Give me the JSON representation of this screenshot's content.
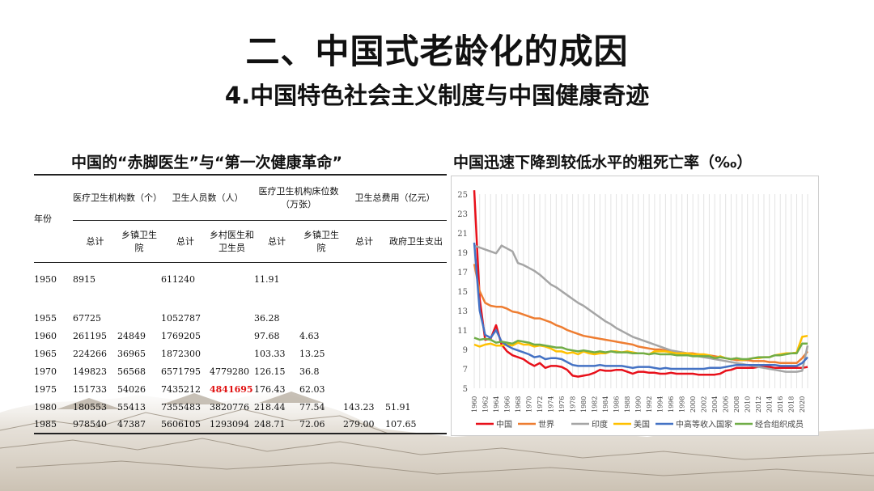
{
  "slide": {
    "title": "二、中国式老龄化的成因",
    "subtitle": "4.中国特色社会主义制度与中国健康奇迹",
    "left_heading": "中国的“赤脚医生”与“第一次健康革命”",
    "right_heading": "中国迅速下降到较低水平的粗死亡率（‰）"
  },
  "table": {
    "year_label": "年份",
    "groups": [
      "医疗卫生机构数（个）",
      "卫生人员数（人）",
      "医疗卫生机构床位数（万张）",
      "卫生总费用（亿元）"
    ],
    "subheaders": [
      "总计",
      "乡镇卫生院",
      "总计",
      "乡村医生和卫生员",
      "总计",
      "乡镇卫生院",
      "总计",
      "政府卫生支出"
    ],
    "rows": [
      [
        "1950",
        "8915",
        "",
        "611240",
        "",
        "11.91",
        "",
        "",
        ""
      ],
      [
        "1955",
        "67725",
        "",
        "1052787",
        "",
        "36.28",
        "",
        "",
        ""
      ],
      [
        "1960",
        "261195",
        "24849",
        "1769205",
        "",
        "97.68",
        "4.63",
        "",
        ""
      ],
      [
        "1965",
        "224266",
        "36965",
        "1872300",
        "",
        "103.33",
        "13.25",
        "",
        ""
      ],
      [
        "1970",
        "149823",
        "56568",
        "6571795",
        "4779280",
        "126.15",
        "36.8",
        "",
        ""
      ],
      [
        "1975",
        "151733",
        "54026",
        "7435212",
        "4841695",
        "176.43",
        "62.03",
        "",
        ""
      ],
      [
        "1980",
        "180553",
        "55413",
        "7355483",
        "3820776",
        "218.44",
        "77.54",
        "143.23",
        "51.91"
      ],
      [
        "1985",
        "978540",
        "47387",
        "5606105",
        "1293094",
        "248.71",
        "72.06",
        "279.00",
        "107.65"
      ]
    ],
    "highlight": {
      "row": 5,
      "col": 4,
      "color": "#e01010"
    }
  },
  "chart_data": {
    "type": "line",
    "title": "中国迅速下降到较低水平的粗死亡率（‰）",
    "x": [
      1960,
      1961,
      1962,
      1963,
      1964,
      1965,
      1966,
      1967,
      1968,
      1969,
      1970,
      1971,
      1972,
      1973,
      1974,
      1975,
      1976,
      1977,
      1978,
      1979,
      1980,
      1981,
      1982,
      1983,
      1984,
      1985,
      1986,
      1987,
      1988,
      1989,
      1990,
      1991,
      1992,
      1993,
      1994,
      1995,
      1996,
      1997,
      1998,
      1999,
      2000,
      2001,
      2002,
      2003,
      2004,
      2005,
      2006,
      2007,
      2008,
      2009,
      2010,
      2011,
      2012,
      2013,
      2014,
      2015,
      2016,
      2017,
      2018,
      2019,
      2020,
      2021
    ],
    "x_tick_labels": [
      "1960",
      "1962",
      "1964",
      "1966",
      "1968",
      "1970",
      "1972",
      "1974",
      "1976",
      "1978",
      "1980",
      "1982",
      "1984",
      "1986",
      "1988",
      "1990",
      "1992",
      "1994",
      "1996",
      "1998",
      "2000",
      "2002",
      "2004",
      "2006",
      "2008",
      "2010",
      "2012",
      "2014",
      "2016",
      "2018",
      "2020"
    ],
    "ylim": [
      5,
      25
    ],
    "y_ticks": [
      5,
      7,
      9,
      11,
      13,
      15,
      17,
      19,
      21,
      23,
      25
    ],
    "grid": "vertical",
    "legend": "bottom",
    "series": [
      {
        "name": "中国",
        "color": "#e8101a",
        "values": [
          25.4,
          14.2,
          10.0,
          10.1,
          11.5,
          9.5,
          8.8,
          8.4,
          8.2,
          8.0,
          7.6,
          7.3,
          7.6,
          7.1,
          7.3,
          7.3,
          7.2,
          6.9,
          6.3,
          6.2,
          6.3,
          6.4,
          6.6,
          6.9,
          6.8,
          6.8,
          6.9,
          6.9,
          6.7,
          6.5,
          6.7,
          6.7,
          6.6,
          6.6,
          6.5,
          6.5,
          6.6,
          6.5,
          6.5,
          6.5,
          6.5,
          6.4,
          6.4,
          6.4,
          6.4,
          6.5,
          6.8,
          6.9,
          7.1,
          7.1,
          7.1,
          7.1,
          7.2,
          7.2,
          7.2,
          7.1,
          7.1,
          7.1,
          7.1,
          7.1,
          7.1,
          7.2
        ]
      },
      {
        "name": "世界",
        "color": "#ee7d31",
        "values": [
          17.8,
          15.0,
          13.8,
          13.5,
          13.4,
          13.4,
          13.2,
          12.9,
          12.8,
          12.6,
          12.4,
          12.2,
          12.2,
          12.0,
          11.8,
          11.5,
          11.3,
          11.0,
          10.8,
          10.6,
          10.4,
          10.3,
          10.2,
          10.1,
          10.0,
          9.9,
          9.8,
          9.7,
          9.6,
          9.5,
          9.3,
          9.2,
          9.1,
          9.0,
          9.0,
          8.9,
          8.8,
          8.7,
          8.7,
          8.6,
          8.6,
          8.5,
          8.4,
          8.4,
          8.3,
          8.2,
          8.1,
          8.0,
          7.9,
          7.9,
          7.9,
          7.8,
          7.8,
          7.8,
          7.7,
          7.7,
          7.6,
          7.6,
          7.6,
          7.6,
          8.1,
          8.8
        ]
      },
      {
        "name": "印度",
        "color": "#a5a5a5",
        "values": [
          19.7,
          19.5,
          19.3,
          19.1,
          18.9,
          19.7,
          19.4,
          19.1,
          17.9,
          17.7,
          17.4,
          17.1,
          16.7,
          16.2,
          15.7,
          15.4,
          15.0,
          14.6,
          14.2,
          13.8,
          13.5,
          13.1,
          12.7,
          12.3,
          11.9,
          11.6,
          11.2,
          10.9,
          10.6,
          10.3,
          10.1,
          9.9,
          9.7,
          9.5,
          9.3,
          9.1,
          8.9,
          8.8,
          8.7,
          8.6,
          8.4,
          8.3,
          8.2,
          8.1,
          8.0,
          7.9,
          7.8,
          7.7,
          7.6,
          7.5,
          7.4,
          7.3,
          7.2,
          7.1,
          7.0,
          6.9,
          6.8,
          6.7,
          6.7,
          6.7,
          6.8,
          9.4
        ]
      },
      {
        "name": "美国",
        "color": "#ffc000",
        "values": [
          9.5,
          9.3,
          9.5,
          9.6,
          9.4,
          9.4,
          9.5,
          9.4,
          9.7,
          9.5,
          9.5,
          9.3,
          9.4,
          9.3,
          9.1,
          8.8,
          8.8,
          8.6,
          8.7,
          8.5,
          8.8,
          8.6,
          8.5,
          8.6,
          8.6,
          8.8,
          8.8,
          8.7,
          8.8,
          8.7,
          8.6,
          8.6,
          8.5,
          8.8,
          8.8,
          8.8,
          8.7,
          8.6,
          8.6,
          8.6,
          8.5,
          8.5,
          8.5,
          8.4,
          8.1,
          8.3,
          8.1,
          8.0,
          8.1,
          7.9,
          8.0,
          8.1,
          8.1,
          8.2,
          8.2,
          8.4,
          8.5,
          8.6,
          8.6,
          8.7,
          10.3,
          10.4
        ]
      },
      {
        "name": "中高等收入国家",
        "color": "#4472c4",
        "values": [
          20.0,
          13.0,
          10.5,
          10.2,
          11.0,
          9.8,
          9.4,
          9.1,
          8.9,
          8.7,
          8.5,
          8.2,
          8.3,
          8.0,
          8.1,
          8.1,
          8.0,
          7.7,
          7.4,
          7.3,
          7.3,
          7.3,
          7.3,
          7.4,
          7.3,
          7.3,
          7.3,
          7.3,
          7.2,
          7.1,
          7.2,
          7.2,
          7.2,
          7.1,
          7.0,
          7.1,
          7.0,
          7.0,
          7.0,
          7.0,
          7.0,
          7.0,
          7.0,
          7.1,
          7.1,
          7.1,
          7.2,
          7.3,
          7.4,
          7.4,
          7.4,
          7.4,
          7.4,
          7.4,
          7.4,
          7.4,
          7.3,
          7.3,
          7.3,
          7.3,
          7.6,
          8.2
        ]
      },
      {
        "name": "经合组织成员",
        "color": "#70ad47",
        "values": [
          10.2,
          10.0,
          10.1,
          10.0,
          9.7,
          9.8,
          9.7,
          9.6,
          9.9,
          9.8,
          9.7,
          9.5,
          9.5,
          9.4,
          9.3,
          9.2,
          9.2,
          9.0,
          8.9,
          8.8,
          8.9,
          8.8,
          8.7,
          8.8,
          8.7,
          8.8,
          8.7,
          8.7,
          8.7,
          8.6,
          8.6,
          8.6,
          8.5,
          8.6,
          8.5,
          8.5,
          8.5,
          8.4,
          8.4,
          8.4,
          8.3,
          8.3,
          8.3,
          8.3,
          8.1,
          8.2,
          8.1,
          8.0,
          8.1,
          8.0,
          8.0,
          8.1,
          8.2,
          8.2,
          8.2,
          8.4,
          8.4,
          8.5,
          8.6,
          8.6,
          9.6,
          9.6
        ]
      }
    ]
  }
}
